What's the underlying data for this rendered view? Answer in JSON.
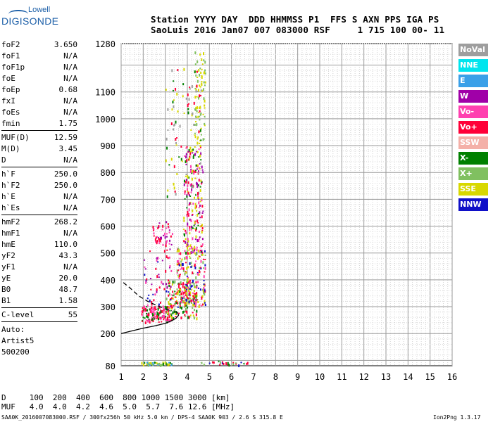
{
  "logo": {
    "line1": "Lowell",
    "line2": "DIGISONDE"
  },
  "header": {
    "line1": "Station YYYY DAY  DDD HHMMSS P1  FFS S AXN PPS IGA PS",
    "line2": "SaoLuis 2016 Jan07 007 083000 RSF     1 715 100 00- 11"
  },
  "params": {
    "group1": [
      {
        "k": "foF2",
        "v": "3.650"
      },
      {
        "k": "foF1",
        "v": "N/A"
      },
      {
        "k": "foF1p",
        "v": "N/A"
      },
      {
        "k": "foE",
        "v": "N/A"
      },
      {
        "k": "foEp",
        "v": "0.68"
      },
      {
        "k": "fxI",
        "v": "N/A"
      },
      {
        "k": "foEs",
        "v": "N/A"
      },
      {
        "k": "fmin",
        "v": "1.75"
      }
    ],
    "group2": [
      {
        "k": "MUF(D)",
        "v": "12.59"
      },
      {
        "k": "M(D)",
        "v": "3.45"
      },
      {
        "k": "D",
        "v": "N/A"
      }
    ],
    "group3": [
      {
        "k": "h`F",
        "v": "250.0"
      },
      {
        "k": "h`F2",
        "v": "250.0"
      },
      {
        "k": "h`E",
        "v": "N/A"
      },
      {
        "k": "h`Es",
        "v": "N/A"
      }
    ],
    "group4": [
      {
        "k": "hmF2",
        "v": "268.2"
      },
      {
        "k": "hmF1",
        "v": "N/A"
      },
      {
        "k": "hmE",
        "v": "110.0"
      },
      {
        "k": "yF2",
        "v": "43.3"
      },
      {
        "k": "yF1",
        "v": "N/A"
      },
      {
        "k": "yE",
        "v": "20.0"
      },
      {
        "k": "B0",
        "v": "48.7"
      },
      {
        "k": "B1",
        "v": "1.58"
      }
    ],
    "group5": [
      {
        "k": "C-level",
        "v": "55"
      }
    ],
    "auto": [
      "Auto:",
      "Artist5",
      "500200"
    ]
  },
  "legend": [
    {
      "label": "NoVal",
      "color": "#9e9e9e"
    },
    {
      "label": "NNE",
      "color": "#00e5ee"
    },
    {
      "label": "E",
      "color": "#3aa0e8"
    },
    {
      "label": "W",
      "color": "#a000a8"
    },
    {
      "label": "Vo-",
      "color": "#ff40b0"
    },
    {
      "label": "Vo+",
      "color": "#ff0038"
    },
    {
      "label": "SSW",
      "color": "#f4b0a8"
    },
    {
      "label": "X-",
      "color": "#008000"
    },
    {
      "label": "X+",
      "color": "#80c060"
    },
    {
      "label": "SSE",
      "color": "#d8d800"
    },
    {
      "label": "NNW",
      "color": "#1010c8"
    }
  ],
  "muf_table": {
    "row1": "D     100  200  400  600  800 1000 1500 3000 [km]",
    "row2": "MUF   4.0  4.0  4.2  4.6  5.0  5.7  7.6 12.6 [MHz]"
  },
  "footer": "SAA0K_2016007083000.RSF / 300fx256h 50 kHz 5.0 km / DPS-4 SAA0K 903 / 2.6 S 315.8 E",
  "version": "Ion2Png 1.3.17",
  "chart_data": {
    "type": "scatter",
    "title": "",
    "xlabel": "",
    "ylabel": "",
    "xlim": [
      1,
      16
    ],
    "ylim": [
      80,
      1280
    ],
    "x_ticks": [
      1,
      2,
      3,
      4,
      5,
      6,
      7,
      8,
      9,
      10,
      11,
      12,
      13,
      14,
      15,
      16
    ],
    "y_ticks": [
      80,
      200,
      300,
      400,
      500,
      600,
      700,
      800,
      900,
      1000,
      1100,
      1280
    ],
    "grid": true,
    "clusters": [
      {
        "x_range": [
          1.9,
          3.3
        ],
        "y_range": [
          245,
          305
        ],
        "colors": [
          "#ff0038",
          "#ff40b0",
          "#008000"
        ],
        "count": 140
      },
      {
        "x_range": [
          3.0,
          4.4
        ],
        "y_range": [
          260,
          400
        ],
        "colors": [
          "#80c060",
          "#008000",
          "#d8d800",
          "#ff0038"
        ],
        "count": 160
      },
      {
        "x_range": [
          3.5,
          4.8
        ],
        "y_range": [
          300,
          520
        ],
        "colors": [
          "#ff0038",
          "#ff40b0",
          "#d8d800",
          "#1010c8",
          "#80c060"
        ],
        "count": 220
      },
      {
        "x_range": [
          3.8,
          4.7
        ],
        "y_range": [
          500,
          900
        ],
        "colors": [
          "#d8d800",
          "#ff0038",
          "#ff40b0",
          "#008000",
          "#a000a8"
        ],
        "count": 200
      },
      {
        "x_range": [
          4.3,
          4.8
        ],
        "y_range": [
          900,
          1280
        ],
        "colors": [
          "#d8d800",
          "#80c060"
        ],
        "count": 80
      },
      {
        "x_range": [
          2.4,
          3.3
        ],
        "y_range": [
          530,
          620
        ],
        "colors": [
          "#ff40b0",
          "#ff0038",
          "#a000a8"
        ],
        "count": 50
      },
      {
        "x_range": [
          2.0,
          3.3
        ],
        "y_range": [
          300,
          520
        ],
        "colors": [
          "#ff40b0",
          "#a000a8",
          "#1010c8",
          "#ff0038"
        ],
        "count": 60
      },
      {
        "x_range": [
          1.9,
          3.3
        ],
        "y_range": [
          84,
          96
        ],
        "colors": [
          "#80c060",
          "#008000",
          "#d8d800",
          "#3aa0e8"
        ],
        "count": 45
      },
      {
        "x_range": [
          4.6,
          6.8
        ],
        "y_range": [
          84,
          100
        ],
        "colors": [
          "#008000",
          "#80c060",
          "#ff0038",
          "#1010c8"
        ],
        "count": 25
      },
      {
        "x_range": [
          3.0,
          4.6
        ],
        "y_range": [
          700,
          1200
        ],
        "colors": [
          "#008000",
          "#ff0038",
          "#d8d800",
          "#9e9e9e"
        ],
        "count": 90
      }
    ],
    "profile_solid": [
      [
        1.0,
        200
      ],
      [
        1.5,
        210
      ],
      [
        2.0,
        220
      ],
      [
        2.5,
        228
      ],
      [
        3.0,
        238
      ],
      [
        3.3,
        248
      ],
      [
        3.5,
        258
      ],
      [
        3.6,
        268
      ],
      [
        3.55,
        278
      ],
      [
        3.4,
        282
      ]
    ],
    "profile_dashed": [
      [
        1.1,
        390
      ],
      [
        1.4,
        370
      ],
      [
        1.8,
        340
      ],
      [
        2.2,
        320
      ],
      [
        2.6,
        305
      ],
      [
        3.0,
        292
      ],
      [
        3.3,
        285
      ]
    ]
  }
}
